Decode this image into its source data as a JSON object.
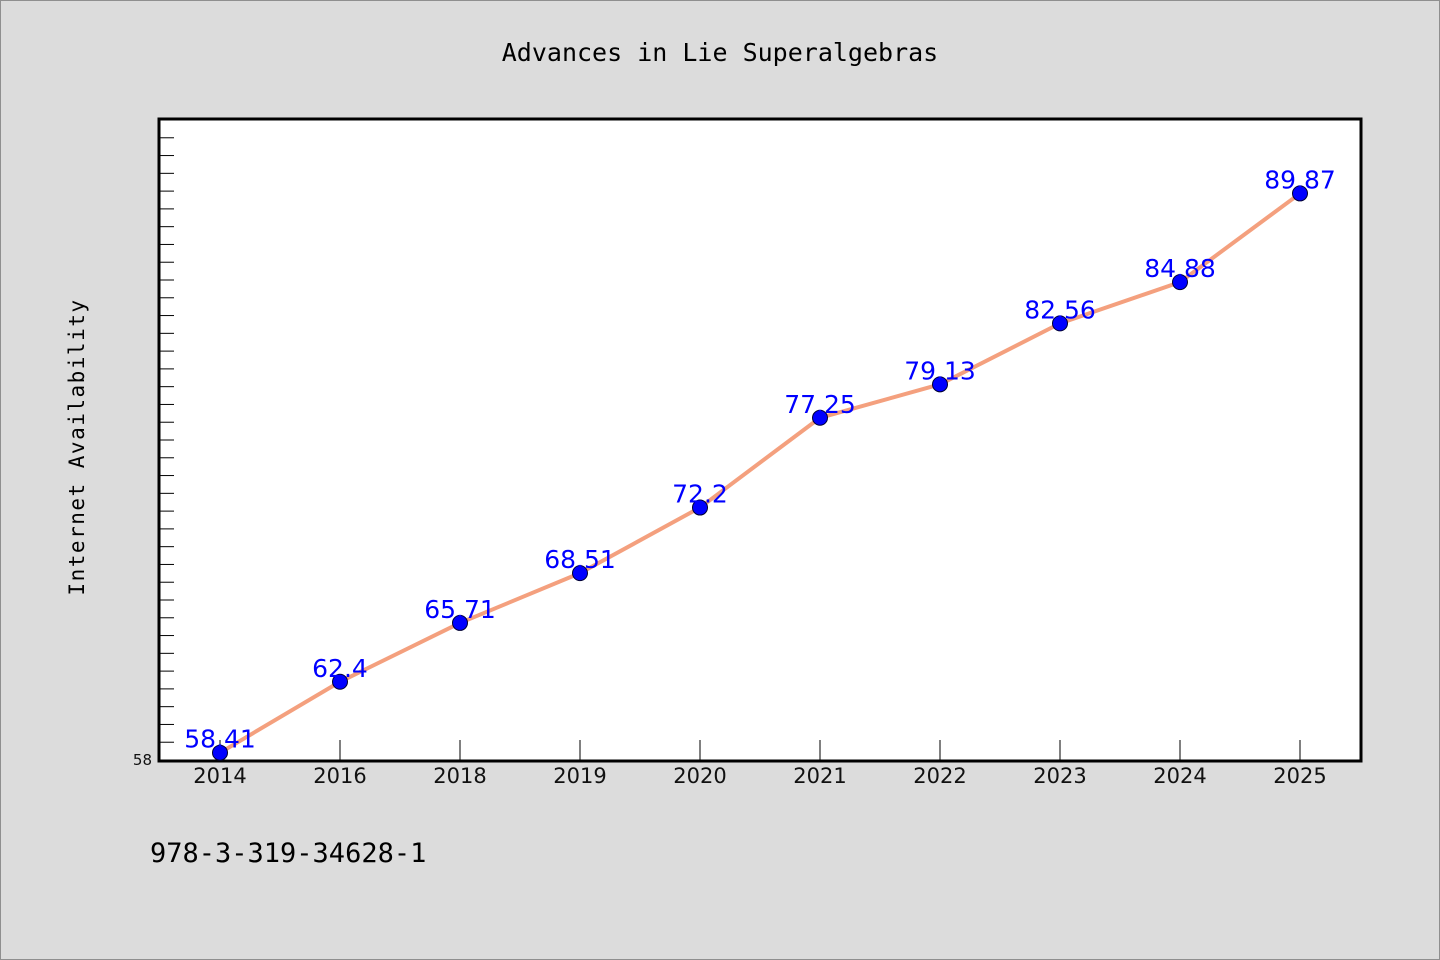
{
  "chart_data": {
    "type": "line",
    "title": "Advances in Lie Superalgebras",
    "xlabel": "",
    "ylabel": "Internet Availability",
    "categories": [
      "2014",
      "2016",
      "2018",
      "2019",
      "2020",
      "2021",
      "2022",
      "2023",
      "2024",
      "2025"
    ],
    "series": [
      {
        "values": [
          58.41,
          62.4,
          65.71,
          68.51,
          72.2,
          77.25,
          79.13,
          82.56,
          84.88,
          89.87
        ],
        "labels": [
          "58.41",
          "62.4",
          "65.71",
          "68.51",
          "72.2",
          "77.25",
          "79.13",
          "82.56",
          "84.88",
          "89.87"
        ],
        "line_color": "#f4a07e",
        "marker_color": "#0000ff"
      }
    ],
    "ylim": [
      58,
      94
    ],
    "ytick_labels": [
      "58"
    ],
    "grid": false,
    "legend": "none",
    "label_color": "#0000ff",
    "background": "#dcdcdc",
    "plot_background": "#ffffff"
  },
  "footnote": "978-3-319-34628-1"
}
